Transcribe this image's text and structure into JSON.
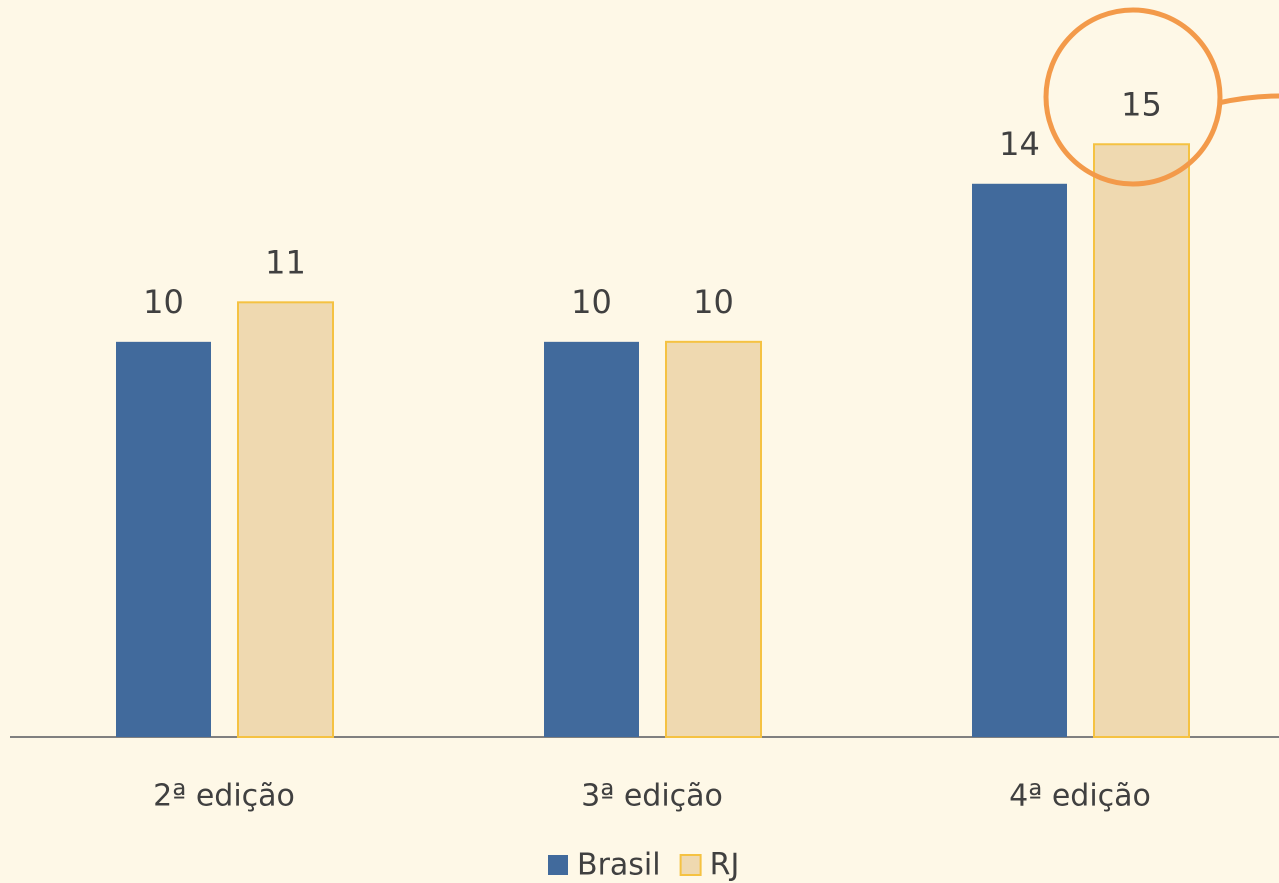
{
  "chart_data": {
    "type": "bar",
    "categories": [
      "2ª edição",
      "3ª edição",
      "4ª edição"
    ],
    "series": [
      {
        "name": "Brasil",
        "color": "#416a9c",
        "values": [
          10,
          10,
          14
        ]
      },
      {
        "name": "RJ",
        "color": "#efd9b0",
        "values": [
          11,
          10,
          15
        ]
      }
    ],
    "ylim": [
      0,
      18.6
    ],
    "legend": "bottom"
  }
}
